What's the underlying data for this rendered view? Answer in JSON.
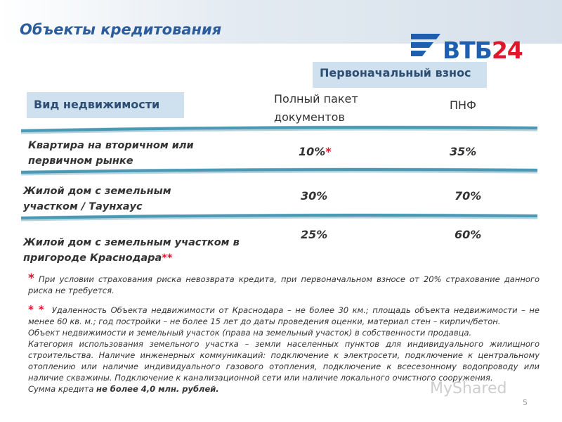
{
  "header": {
    "title": "Объекты кредитования",
    "logo": {
      "name": "ВТБ",
      "number": "24"
    }
  },
  "table": {
    "group_header": "Первоначальный взнос",
    "columns": [
      "Вид недвижимости",
      "Полный пакет документов",
      "ПНФ"
    ],
    "rows": [
      {
        "label": "Квартира на вторичном или первичном рынке",
        "label_note": null,
        "full": "10%",
        "full_note": "*",
        "pnf": "35%"
      },
      {
        "label": "Жилой дом с земельным участком / Таунхаус",
        "label_note": null,
        "full": "30%",
        "full_note": null,
        "pnf": "70%"
      },
      {
        "label": "Жилой дом с земельным участком в пригороде Краснодара",
        "label_note": "**",
        "full": "25%",
        "full_note": null,
        "pnf": "60%"
      }
    ]
  },
  "footnotes": [
    {
      "marker": "*",
      "text": "При условии страхования риска невозврата кредита, при первоначальном взносе от 20% страхование данного риска не требуется."
    },
    {
      "marker": "* *",
      "paragraphs": [
        "Удаленность Объекта недвижимости от Краснодара – не более 30 км.; площадь объекта недвижимости – не менее 60 кв. м.; год постройки – не более 15 лет до даты проведения оценки, материал стен – кирпич/бетон.",
        "Объект недвижимости и земельный участок (права на земельный участок) в собственности продавца.",
        "Категория использования земельного участка – земли населенных пунктов для индивидуального жилищного строительства. Наличие инженерных коммуникаций: подключение к электросети, подключение к центральному отоплению или наличие индивидуального газового отопления, подключение к всесезонному водопроводу или наличие скважины. Подключение к канализационной сети или наличие локального очистного сооружения."
      ],
      "last": {
        "text": "Сумма кредита",
        "bold": "не более 4,0 млн. рублей."
      }
    }
  ],
  "page_number": "5",
  "watermark": "MyShared"
}
